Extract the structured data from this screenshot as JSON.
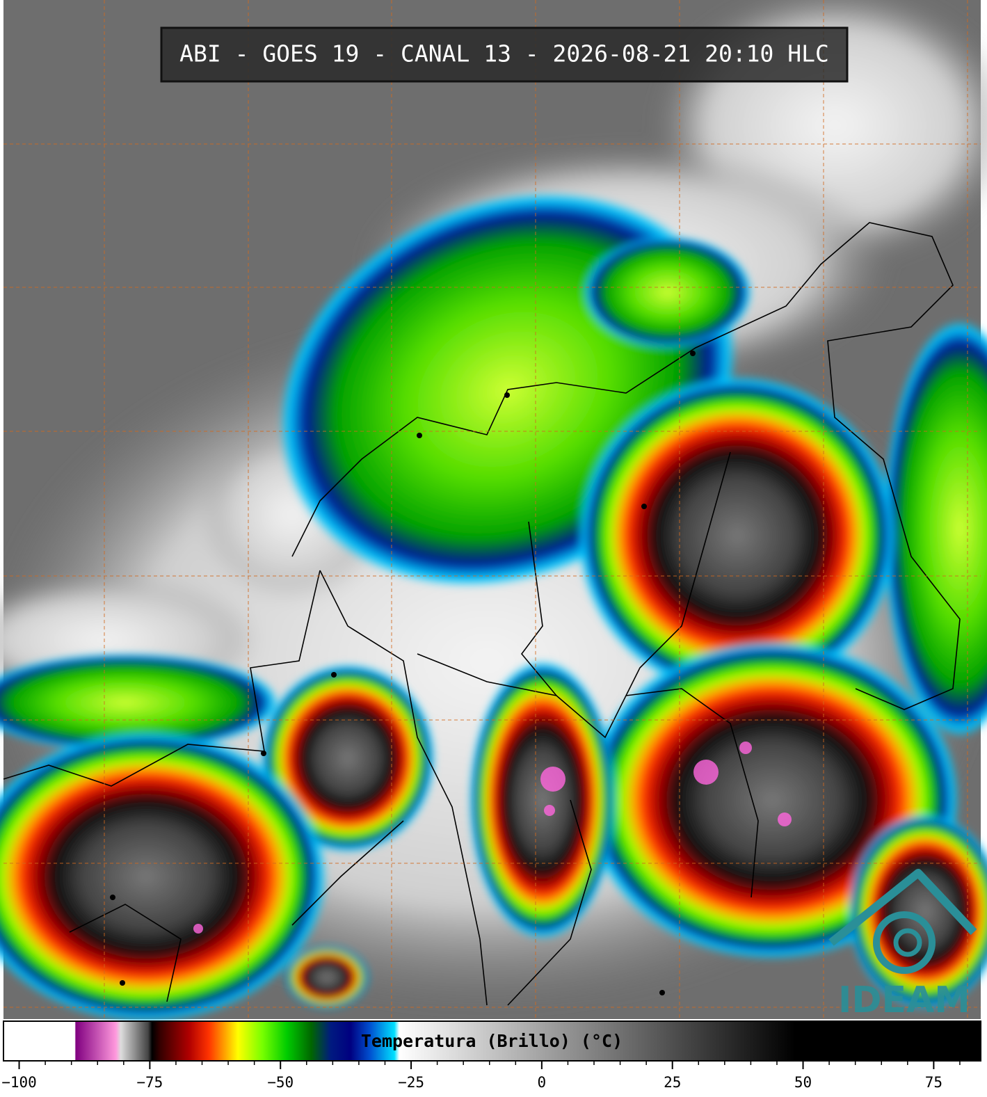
{
  "title": "ABI - GOES 19 - CANAL 13 - 2026-08-21 20:10 HLC",
  "logo": "IDEAM",
  "colorbar": {
    "label": "Temperatura (Brillo) (°C)",
    "lim": [
      -103,
      84
    ],
    "ticks": [
      {
        "value": -100,
        "label": "−100"
      },
      {
        "value": -75,
        "label": "−75"
      },
      {
        "value": -50,
        "label": "−50"
      },
      {
        "value": -25,
        "label": "−25"
      },
      0,
      25,
      50,
      75
    ]
  }
}
